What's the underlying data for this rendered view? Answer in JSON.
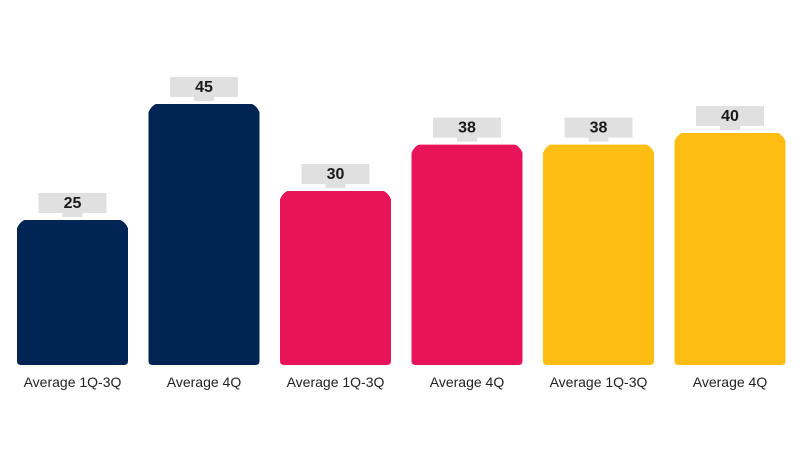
{
  "chart_data": {
    "type": "bar",
    "categories": [
      "Average 1Q-3Q",
      "Average 4Q",
      "Average 1Q-3Q",
      "Average 4Q",
      "Average 1Q-3Q",
      "Average 4Q"
    ],
    "values": [
      25,
      45,
      30,
      38,
      38,
      40
    ],
    "bar_colors": [
      "#002554",
      "#002554",
      "#e8145a",
      "#e8145a",
      "#fdbd12",
      "#fdbd12"
    ],
    "label_box_color": "#e0e0e0",
    "title": "",
    "xlabel": "",
    "ylabel": "",
    "ylim": [
      0,
      50
    ],
    "grid": false,
    "legend": "none"
  }
}
